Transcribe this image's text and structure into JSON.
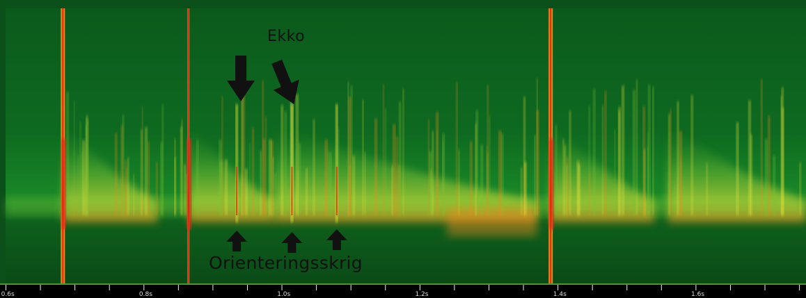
{
  "chart_data": {
    "type": "heatmap",
    "title": "",
    "xlabel": "",
    "ylabel": "",
    "x_ticks": [
      "0.6s",
      "0.8s",
      "1.0s",
      "1.2s",
      "1.4s",
      "1.6s"
    ],
    "x_tick_values": [
      0.6,
      0.8,
      1.0,
      1.2,
      1.4,
      1.6
    ],
    "xlim": [
      0.56,
      1.72
    ],
    "strong_clicks_s": [
      0.643,
      0.825,
      1.35
    ],
    "orientation_calls_s": [
      0.895,
      0.975,
      1.04
    ],
    "echoes_s": [
      0.905,
      0.98
    ],
    "colormap": [
      "#0a4a14",
      "#1a7a22",
      "#7cc436",
      "#e6e23a",
      "#f08a1e",
      "#e02a12"
    ]
  },
  "annotations": {
    "echo_label": "Ekko",
    "orientation_label": "Orienteringsskrig"
  }
}
